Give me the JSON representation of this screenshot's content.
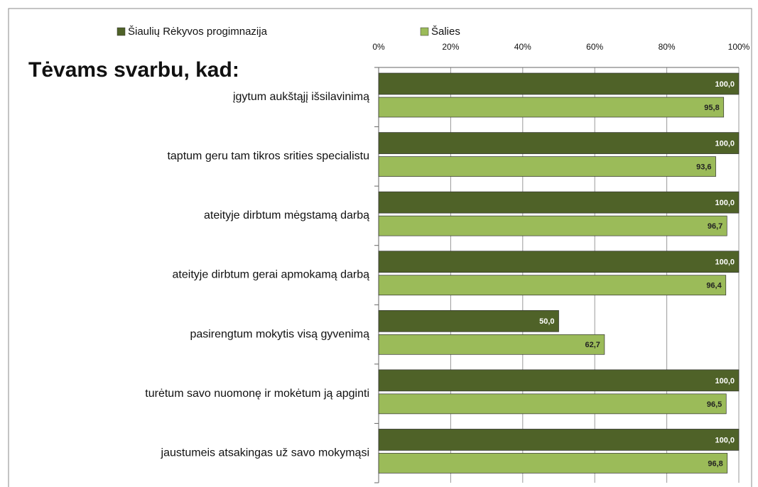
{
  "chart_data": {
    "type": "bar",
    "orientation": "horizontal",
    "title": "Tėvams svarbu, kad:",
    "categories": [
      "įgytum aukštąjį išsilavinimą",
      "taptum geru tam tikros srities specialistu",
      "ateityje dirbtum mėgstamą darbą",
      "ateityje dirbtum gerai apmokamą darbą",
      "pasirengtum mokytis visą gyvenimą",
      "turėtum savo nuomonę ir mokėtum ją apginti",
      "jaustumeis atsakingas už savo mokymąsi"
    ],
    "series": [
      {
        "name": "Šiaulių Rėkyvos progimnazija",
        "color": "#4f6228",
        "values": [
          100,
          100,
          100,
          100,
          50,
          100,
          100
        ],
        "value_labels": [
          "100,0",
          "100,0",
          "100,0",
          "100,0",
          "50,0",
          "100,0",
          "100,0"
        ]
      },
      {
        "name": "Šalies",
        "color": "#9bbb59",
        "values": [
          95.8,
          93.6,
          96.7,
          96.4,
          62.7,
          96.5,
          96.8
        ],
        "value_labels": [
          "95,8",
          "93,6",
          "96,7",
          "96,4",
          "62,7",
          "96,5",
          "96,8"
        ]
      }
    ],
    "xlim": [
      0,
      100
    ],
    "xticks": [
      {
        "value": 0,
        "label": "0%"
      },
      {
        "value": 20,
        "label": "20%"
      },
      {
        "value": 40,
        "label": "40%"
      },
      {
        "value": 60,
        "label": "60%"
      },
      {
        "value": 80,
        "label": "80%"
      },
      {
        "value": 100,
        "label": "100%"
      }
    ],
    "grid": true,
    "legend": "top"
  }
}
